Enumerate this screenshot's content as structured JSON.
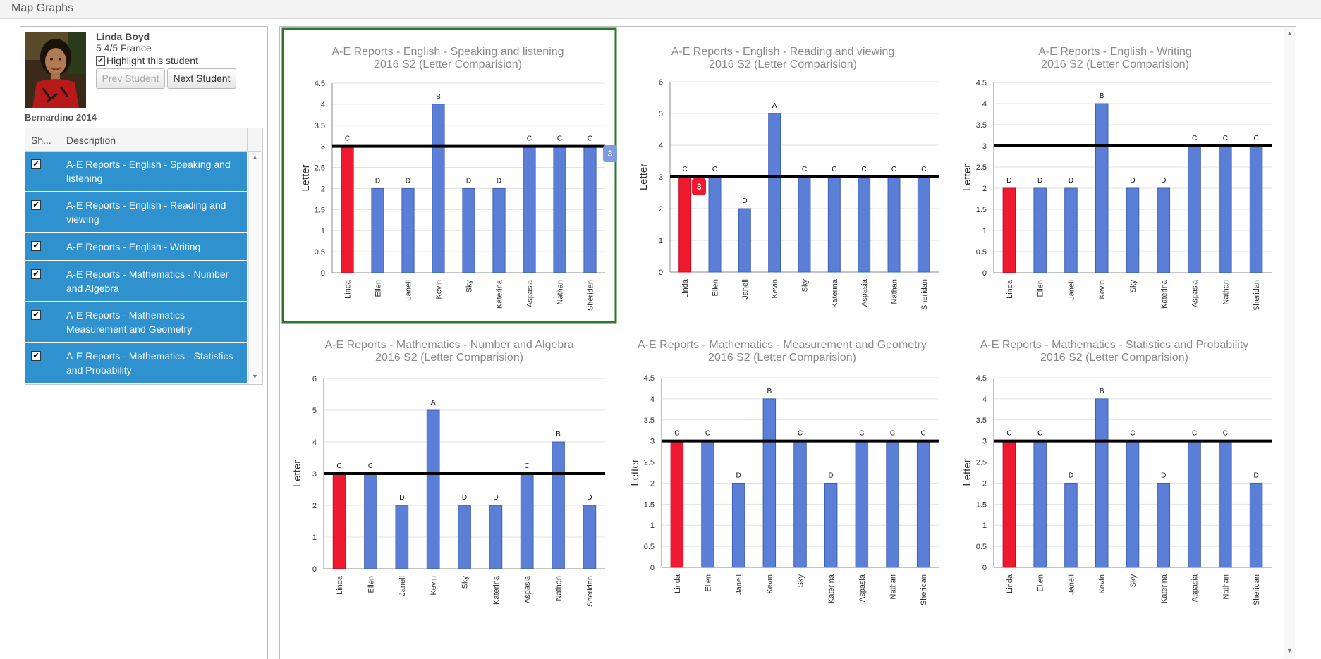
{
  "app": {
    "title": "Map Graphs"
  },
  "student": {
    "name": "Linda Boyd",
    "class": "5 4/5 France",
    "highlight_label": "Highlight this student",
    "prev_label": "Prev Student",
    "next_label": "Next Student",
    "group": "Bernardino 2014"
  },
  "grid": {
    "col_show": "Sh...",
    "col_desc": "Description",
    "rows": [
      {
        "label": "A-E Reports - English - Speaking and listening"
      },
      {
        "label": "A-E Reports - English - Reading and viewing"
      },
      {
        "label": "A-E Reports - English - Writing"
      },
      {
        "label": "A-E Reports - Mathematics - Number and Algebra"
      },
      {
        "label": "A-E Reports - Mathematics - Measurement and Geometry"
      },
      {
        "label": "A-E Reports - Mathematics - Statistics and Probability"
      }
    ]
  },
  "colors": {
    "bar": "#5b7fd6",
    "highlight_bar": "#f01a30",
    "frame": "#2a7a2a",
    "accent": "#2f92ce"
  },
  "chart_data": [
    {
      "type": "bar",
      "title": "A-E Reports - English - Speaking and listening",
      "subtitle": "2016 S2 (Letter Comparision)",
      "ylabel": "Letter",
      "ylim": [
        0,
        4.5
      ],
      "yticks": [
        0,
        0.5,
        1,
        1.5,
        2,
        2.5,
        3,
        3.5,
        4,
        4.5
      ],
      "tick_labels": [
        "0",
        "0.5",
        "1",
        "1.5",
        "2",
        "2.5",
        "3",
        "3.5",
        "4",
        "4.5"
      ],
      "categories": [
        "Linda",
        "Ellen",
        "Janell",
        "Kevin",
        "Sky",
        "Katerina",
        "Aspasia",
        "Nathan",
        "Sheridan"
      ],
      "values": [
        3,
        2,
        2,
        4,
        2,
        2,
        3,
        3,
        3
      ],
      "letters": [
        "C",
        "D",
        "D",
        "B",
        "D",
        "D",
        "C",
        "C",
        "C"
      ],
      "reference_line": 3,
      "highlighted": "Linda",
      "tooltip": "3",
      "selected": true
    },
    {
      "type": "bar",
      "title": "A-E Reports - English - Reading and viewing",
      "subtitle": "2016 S2 (Letter Comparision)",
      "ylabel": "Letter",
      "ylim": [
        0,
        6
      ],
      "yticks": [
        0,
        1,
        2,
        3,
        4,
        5,
        6
      ],
      "tick_labels": [
        "0",
        "1",
        "2",
        "3",
        "4",
        "5",
        "6"
      ],
      "categories": [
        "Linda",
        "Ellen",
        "Janell",
        "Kevin",
        "Sky",
        "Katerina",
        "Aspasia",
        "Nathan",
        "Sheridan"
      ],
      "values": [
        3,
        3,
        2,
        5,
        3,
        3,
        3,
        3,
        3
      ],
      "letters": [
        "C",
        "C",
        "D",
        "A",
        "C",
        "C",
        "C",
        "C",
        "C"
      ],
      "reference_line": 3,
      "highlighted": "Linda",
      "tooltip": "3",
      "selected": false
    },
    {
      "type": "bar",
      "title": "A-E Reports - English - Writing",
      "subtitle": "2016 S2 (Letter Comparision)",
      "ylabel": "Letter",
      "ylim": [
        0,
        4.5
      ],
      "yticks": [
        0,
        0.5,
        1,
        1.5,
        2,
        2.5,
        3,
        3.5,
        4,
        4.5
      ],
      "tick_labels": [
        "0",
        "0.5",
        "1",
        "1.5",
        "2",
        "2.5",
        "3",
        "3.5",
        "4",
        "4.5"
      ],
      "categories": [
        "Linda",
        "Ellen",
        "Janell",
        "Kevin",
        "Sky",
        "Katerina",
        "Aspasia",
        "Nathan",
        "Sheridan"
      ],
      "values": [
        2,
        2,
        2,
        4,
        2,
        2,
        3,
        3,
        3
      ],
      "letters": [
        "D",
        "D",
        "D",
        "B",
        "D",
        "D",
        "C",
        "C",
        "C"
      ],
      "reference_line": 3,
      "highlighted": "Linda",
      "tooltip": "",
      "selected": false
    },
    {
      "type": "bar",
      "title": "A-E Reports - Mathematics - Number and Algebra",
      "subtitle": "2016 S2 (Letter Comparision)",
      "ylabel": "Letter",
      "ylim": [
        0,
        6
      ],
      "yticks": [
        0,
        1,
        2,
        3,
        4,
        5,
        6
      ],
      "tick_labels": [
        "0",
        "1",
        "2",
        "3",
        "4",
        "5",
        "6"
      ],
      "categories": [
        "Linda",
        "Ellen",
        "Janell",
        "Kevin",
        "Sky",
        "Katerina",
        "Aspasia",
        "Nathan",
        "Sheridan"
      ],
      "values": [
        3,
        3,
        2,
        5,
        2,
        2,
        3,
        4,
        2
      ],
      "letters": [
        "C",
        "C",
        "D",
        "A",
        "D",
        "D",
        "C",
        "B",
        "D"
      ],
      "reference_line": 3,
      "highlighted": "Linda",
      "tooltip": "",
      "selected": false
    },
    {
      "type": "bar",
      "title": "A-E Reports - Mathematics - Measurement and Geometry",
      "subtitle": "2016 S2 (Letter Comparision)",
      "ylabel": "Letter",
      "ylim": [
        0,
        4.5
      ],
      "yticks": [
        0,
        0.5,
        1,
        1.5,
        2,
        2.5,
        3,
        3.5,
        4,
        4.5
      ],
      "tick_labels": [
        "0",
        "0.5",
        "1",
        "1.5",
        "2",
        "2.5",
        "3",
        "3.5",
        "4",
        "4.5"
      ],
      "categories": [
        "Linda",
        "Ellen",
        "Janell",
        "Kevin",
        "Sky",
        "Katerina",
        "Aspasia",
        "Nathan",
        "Sheridan"
      ],
      "values": [
        3,
        3,
        2,
        4,
        3,
        2,
        3,
        3,
        3
      ],
      "letters": [
        "C",
        "C",
        "D",
        "B",
        "C",
        "D",
        "C",
        "C",
        "C"
      ],
      "reference_line": 3,
      "highlighted": "Linda",
      "tooltip": "",
      "selected": false
    },
    {
      "type": "bar",
      "title": "A-E Reports - Mathematics - Statistics and Probability",
      "subtitle": "2016 S2 (Letter Comparision)",
      "ylabel": "Letter",
      "ylim": [
        0,
        4.5
      ],
      "yticks": [
        0,
        0.5,
        1,
        1.5,
        2,
        2.5,
        3,
        3.5,
        4,
        4.5
      ],
      "tick_labels": [
        "0",
        "0.5",
        "1",
        "1.5",
        "2",
        "2.5",
        "3",
        "3.5",
        "4",
        "4.5"
      ],
      "categories": [
        "Linda",
        "Ellen",
        "Janell",
        "Kevin",
        "Sky",
        "Katerina",
        "Aspasia",
        "Nathan",
        "Sheridan"
      ],
      "values": [
        3,
        3,
        2,
        4,
        3,
        2,
        3,
        3,
        2
      ],
      "letters": [
        "C",
        "C",
        "D",
        "B",
        "C",
        "D",
        "C",
        "C",
        "D"
      ],
      "reference_line": 3,
      "highlighted": "Linda",
      "tooltip": "",
      "selected": false
    }
  ]
}
